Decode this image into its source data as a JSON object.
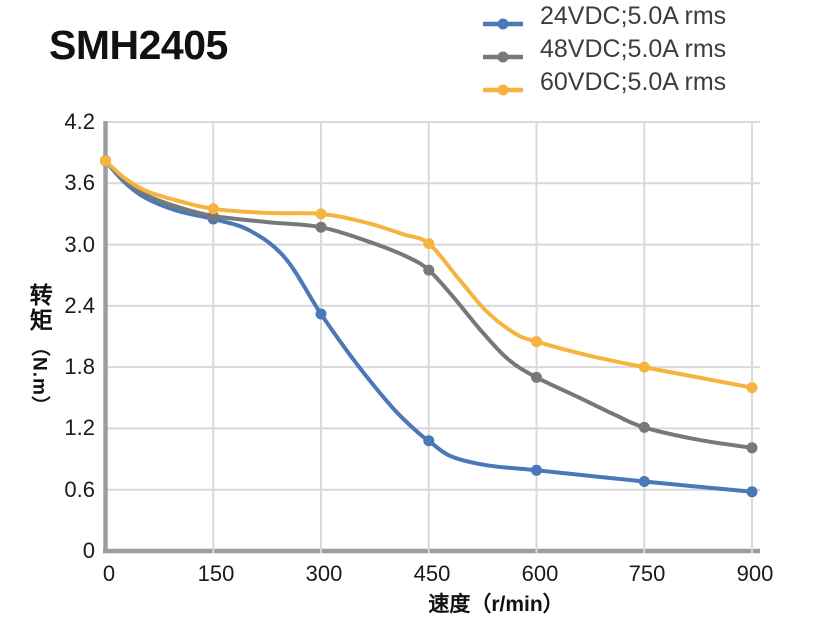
{
  "title": "SMH2405",
  "axes": {
    "y_label_cn": "转矩",
    "y_label_unit": "（N.m）",
    "x_label": "速度（r/min）"
  },
  "colors": {
    "background": "#ffffff",
    "grid": "#d9d9da",
    "axis": "#9d9da0",
    "tick_text": "#1a1a1a",
    "legend_text": "#3d3d3d",
    "blue": "#4a79b6",
    "gray": "#77787a",
    "yellow": "#f6b33f"
  },
  "legend": {
    "position": "top-right",
    "items": [
      {
        "label": "24VDC;5.0A rms",
        "color": "#4a79b6"
      },
      {
        "label": "48VDC;5.0A rms",
        "color": "#77787a"
      },
      {
        "label": "60VDC;5.0A rms",
        "color": "#f6b33f"
      }
    ]
  },
  "chart_data": {
    "type": "line",
    "title": "SMH2405",
    "xlabel": "速度（r/min）",
    "ylabel": "转矩（N.m）",
    "xlim": [
      0,
      900
    ],
    "ylim": [
      0,
      4.2
    ],
    "grid": true,
    "legend_position": "top-right",
    "x_tick_labels": [
      "0",
      "150",
      "300",
      "450",
      "600",
      "750",
      "900"
    ],
    "y_tick_labels": [
      "0",
      "0.6",
      "1.2",
      "1.8",
      "2.4",
      "3.0",
      "3.6",
      "4.2"
    ],
    "series": [
      {
        "name": "24VDC;5.0A rms",
        "color": "#4a79b6",
        "x": [
          0,
          150,
          300,
          450,
          600,
          750,
          900
        ],
        "y": [
          3.82,
          3.25,
          2.32,
          1.08,
          0.79,
          0.68,
          0.58
        ],
        "curve_samples": {
          "x": [
            0,
            25,
            55,
            100,
            150,
            200,
            250,
            300,
            350,
            400,
            435,
            450,
            480,
            530,
            600,
            750,
            900
          ],
          "y": [
            3.82,
            3.62,
            3.46,
            3.33,
            3.25,
            3.14,
            2.87,
            2.32,
            1.83,
            1.4,
            1.16,
            1.08,
            0.93,
            0.84,
            0.79,
            0.68,
            0.58
          ]
        }
      },
      {
        "name": "48VDC;5.0A rms",
        "color": "#77787a",
        "x": [
          0,
          150,
          300,
          450,
          600,
          750,
          900
        ],
        "y": [
          3.82,
          3.28,
          3.17,
          2.75,
          1.7,
          1.21,
          1.01
        ],
        "curve_samples": {
          "x": [
            0,
            25,
            55,
            100,
            150,
            225,
            300,
            370,
            420,
            450,
            485,
            520,
            560,
            600,
            660,
            710,
            750,
            825,
            900
          ],
          "y": [
            3.82,
            3.64,
            3.49,
            3.37,
            3.28,
            3.22,
            3.17,
            3.02,
            2.88,
            2.75,
            2.48,
            2.18,
            1.88,
            1.7,
            1.5,
            1.33,
            1.21,
            1.09,
            1.01
          ]
        }
      },
      {
        "name": "60VDC;5.0A rms",
        "color": "#f6b33f",
        "x": [
          0,
          150,
          300,
          450,
          600,
          750,
          900
        ],
        "y": [
          3.82,
          3.35,
          3.3,
          3.01,
          2.05,
          1.8,
          1.6
        ],
        "curve_samples": {
          "x": [
            0,
            25,
            55,
            100,
            150,
            225,
            300,
            360,
            415,
            450,
            490,
            530,
            570,
            600,
            675,
            750,
            825,
            900
          ],
          "y": [
            3.82,
            3.66,
            3.53,
            3.43,
            3.35,
            3.31,
            3.3,
            3.22,
            3.1,
            3.01,
            2.68,
            2.35,
            2.13,
            2.05,
            1.91,
            1.8,
            1.7,
            1.6
          ]
        }
      }
    ]
  }
}
